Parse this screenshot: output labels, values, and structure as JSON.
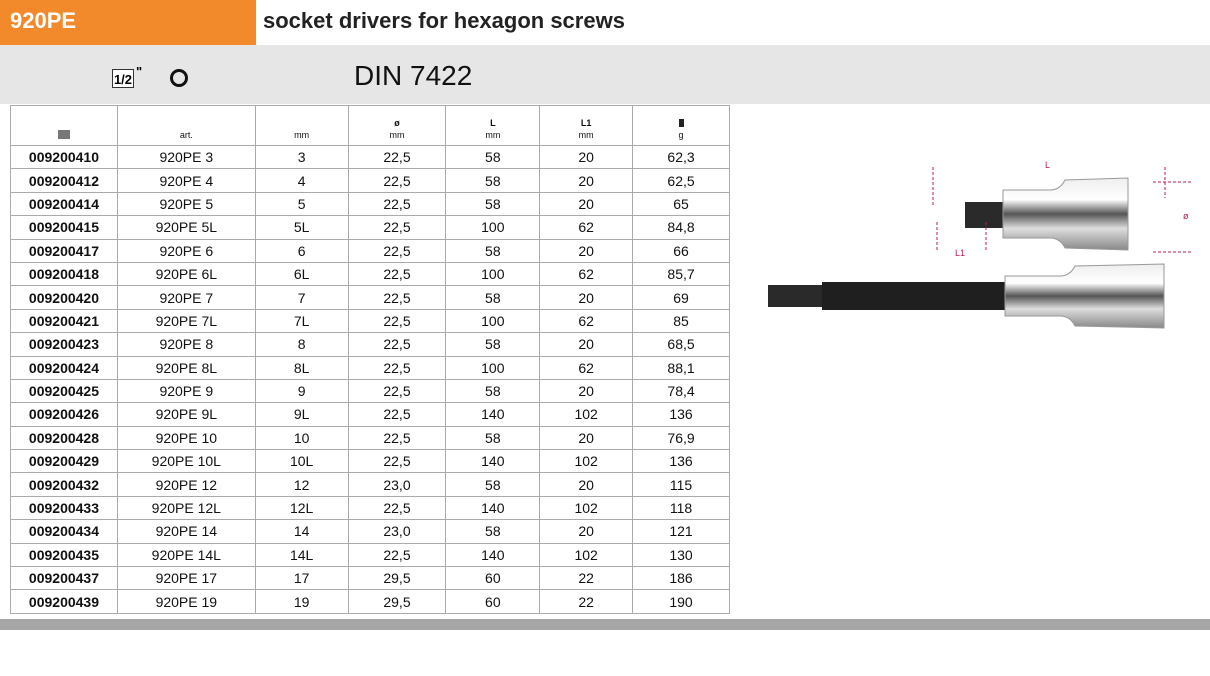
{
  "header": {
    "code": "920PE",
    "title": "socket drivers for hexagon screws"
  },
  "band": {
    "drive": "1/2",
    "drive_unit": "\"",
    "standard": "DIN 7422",
    "drive_icon": "square-drive-icon",
    "profile_icon": "hexagon-profile-icon"
  },
  "table": {
    "headers": [
      {
        "top": "",
        "bottom": "",
        "icon": "catalogue-icon"
      },
      {
        "top": "",
        "bottom": "art."
      },
      {
        "top": "",
        "bottom": "mm"
      },
      {
        "top": "ø",
        "bottom": "mm"
      },
      {
        "top": "L",
        "bottom": "mm"
      },
      {
        "top": "L1",
        "bottom": "mm"
      },
      {
        "top": "",
        "bottom": "g",
        "icon": "weight-icon"
      }
    ],
    "rows": [
      [
        "009200410",
        "920PE 3",
        "3",
        "22,5",
        "58",
        "20",
        "62,3"
      ],
      [
        "009200412",
        "920PE 4",
        "4",
        "22,5",
        "58",
        "20",
        "62,5"
      ],
      [
        "009200414",
        "920PE 5",
        "5",
        "22,5",
        "58",
        "20",
        "65"
      ],
      [
        "009200415",
        "920PE 5L",
        "5L",
        "22,5",
        "100",
        "62",
        "84,8"
      ],
      [
        "009200417",
        "920PE 6",
        "6",
        "22,5",
        "58",
        "20",
        "66"
      ],
      [
        "009200418",
        "920PE 6L",
        "6L",
        "22,5",
        "100",
        "62",
        "85,7"
      ],
      [
        "009200420",
        "920PE 7",
        "7",
        "22,5",
        "58",
        "20",
        "69"
      ],
      [
        "009200421",
        "920PE 7L",
        "7L",
        "22,5",
        "100",
        "62",
        "85"
      ],
      [
        "009200423",
        "920PE 8",
        "8",
        "22,5",
        "58",
        "20",
        "68,5"
      ],
      [
        "009200424",
        "920PE 8L",
        "8L",
        "22,5",
        "100",
        "62",
        "88,1"
      ],
      [
        "009200425",
        "920PE 9",
        "9",
        "22,5",
        "58",
        "20",
        "78,4"
      ],
      [
        "009200426",
        "920PE 9L",
        "9L",
        "22,5",
        "140",
        "102",
        "136"
      ],
      [
        "009200428",
        "920PE 10",
        "10",
        "22,5",
        "58",
        "20",
        "76,9"
      ],
      [
        "009200429",
        "920PE 10L",
        "10L",
        "22,5",
        "140",
        "102",
        "136"
      ],
      [
        "009200432",
        "920PE 12",
        "12",
        "23,0",
        "58",
        "20",
        "115"
      ],
      [
        "009200433",
        "920PE 12L",
        "12L",
        "22,5",
        "140",
        "102",
        "118"
      ],
      [
        "009200434",
        "920PE 14",
        "14",
        "23,0",
        "58",
        "20",
        "121"
      ],
      [
        "009200435",
        "920PE 14L",
        "14L",
        "22,5",
        "140",
        "102",
        "130"
      ],
      [
        "009200437",
        "920PE 17",
        "17",
        "29,5",
        "60",
        "22",
        "186"
      ],
      [
        "009200439",
        "920PE 19",
        "19",
        "29,5",
        "60",
        "22",
        "190"
      ]
    ]
  },
  "image": {
    "labels": {
      "L": "L",
      "L1": "L1",
      "diameter": "ø"
    },
    "dim_color": "#c2185b"
  }
}
